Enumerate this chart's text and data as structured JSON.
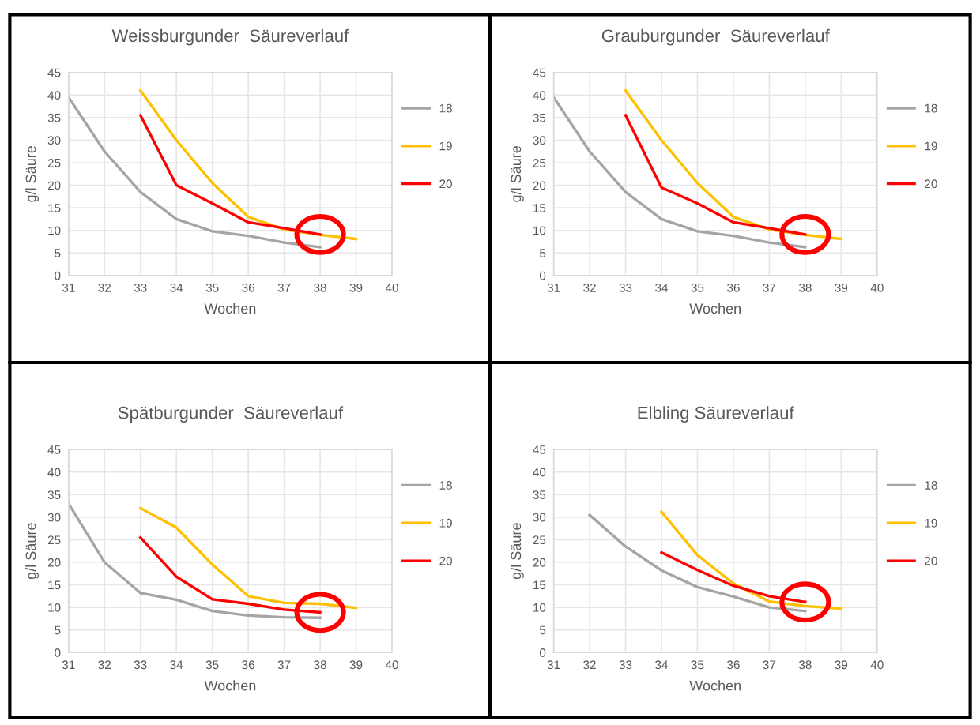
{
  "chart_data": [
    {
      "type": "line",
      "title": "Weissburgunder  Säureverlauf",
      "xlabel": "Wochen",
      "ylabel": "g/l Säure",
      "xlim": [
        31,
        40
      ],
      "xticks": [
        31,
        32,
        33,
        34,
        35,
        36,
        37,
        38,
        39,
        40
      ],
      "ylim": [
        0,
        45
      ],
      "yticks": [
        0,
        5,
        10,
        15,
        20,
        25,
        30,
        35,
        40,
        45
      ],
      "grid": true,
      "legend": "right",
      "series": [
        {
          "name": "18",
          "color": "#a5a5a5",
          "x": [
            31,
            32,
            33,
            34,
            35,
            36,
            37,
            38
          ],
          "values": [
            39.5,
            27.5,
            18.5,
            12.5,
            9.8,
            8.8,
            7.3,
            6.3
          ]
        },
        {
          "name": "19",
          "color": "#ffc000",
          "x": [
            33,
            34,
            35,
            36,
            37,
            38,
            39
          ],
          "values": [
            41,
            30,
            20.5,
            13,
            10.2,
            9,
            8.1
          ]
        },
        {
          "name": "20",
          "color": "#ff0000",
          "x": [
            33,
            34,
            35,
            36,
            37,
            38
          ],
          "values": [
            35.5,
            20,
            16,
            11.8,
            10.5,
            9.1
          ]
        }
      ]
    },
    {
      "type": "line",
      "title": "Grauburgunder  Säureverlauf",
      "xlabel": "Wochen",
      "ylabel": "g/l Säure",
      "xlim": [
        31,
        40
      ],
      "xticks": [
        31,
        32,
        33,
        34,
        35,
        36,
        37,
        38,
        39,
        40
      ],
      "ylim": [
        0,
        45
      ],
      "yticks": [
        0,
        5,
        10,
        15,
        20,
        25,
        30,
        35,
        40,
        45
      ],
      "grid": true,
      "legend": "right",
      "series": [
        {
          "name": "18",
          "color": "#a5a5a5",
          "x": [
            31,
            32,
            33,
            34,
            35,
            36,
            37,
            38
          ],
          "values": [
            39.5,
            27.5,
            18.5,
            12.5,
            9.8,
            8.8,
            7.3,
            6.3
          ]
        },
        {
          "name": "19",
          "color": "#ffc000",
          "x": [
            33,
            34,
            35,
            36,
            37,
            38,
            39
          ],
          "values": [
            41,
            30,
            20.5,
            13,
            10.2,
            9,
            8.1
          ]
        },
        {
          "name": "20",
          "color": "#ff0000",
          "x": [
            33,
            34,
            35,
            36,
            37,
            38
          ],
          "values": [
            35.5,
            19.5,
            16,
            11.8,
            10.5,
            9.1
          ]
        }
      ]
    },
    {
      "type": "line",
      "title": "Spätburgunder  Säureverlauf",
      "xlabel": "Wochen",
      "ylabel": "g/l Säure",
      "xlim": [
        31,
        40
      ],
      "xticks": [
        31,
        32,
        33,
        34,
        35,
        36,
        37,
        38,
        39,
        40
      ],
      "ylim": [
        0,
        45
      ],
      "yticks": [
        0,
        5,
        10,
        15,
        20,
        25,
        30,
        35,
        40,
        45
      ],
      "grid": true,
      "legend": "right",
      "series": [
        {
          "name": "18",
          "color": "#a5a5a5",
          "x": [
            31,
            32,
            33,
            34,
            35,
            36,
            37,
            38
          ],
          "values": [
            33,
            20,
            13.2,
            11.7,
            9.2,
            8.2,
            7.8,
            7.7
          ]
        },
        {
          "name": "19",
          "color": "#ffc000",
          "x": [
            33,
            34,
            35,
            36,
            37,
            38,
            39
          ],
          "values": [
            32,
            27.7,
            19.5,
            12.5,
            11,
            10.8,
            9.9
          ]
        },
        {
          "name": "20",
          "color": "#ff0000",
          "x": [
            33,
            34,
            35,
            36,
            37,
            38
          ],
          "values": [
            25.5,
            16.8,
            11.8,
            10.8,
            9.5,
            8.9
          ]
        }
      ]
    },
    {
      "type": "line",
      "title": "Elbling Säureverlauf",
      "xlabel": "Wochen",
      "ylabel": "g/l Säure",
      "xlim": [
        31,
        40
      ],
      "xticks": [
        31,
        32,
        33,
        34,
        35,
        36,
        37,
        38,
        39,
        40
      ],
      "ylim": [
        0,
        45
      ],
      "yticks": [
        0,
        5,
        10,
        15,
        20,
        25,
        30,
        35,
        40,
        45
      ],
      "grid": true,
      "legend": "right",
      "series": [
        {
          "name": "18",
          "color": "#a5a5a5",
          "x": [
            32,
            33,
            34,
            35,
            36,
            37,
            38
          ],
          "values": [
            30.5,
            23.5,
            18.2,
            14.5,
            12.4,
            10,
            9.2
          ]
        },
        {
          "name": "19",
          "color": "#ffc000",
          "x": [
            34,
            35,
            36,
            37,
            38,
            39
          ],
          "values": [
            31.2,
            21.6,
            15.3,
            11.3,
            10.3,
            9.7
          ]
        },
        {
          "name": "20",
          "color": "#ff0000",
          "x": [
            34,
            35,
            36,
            37,
            38
          ],
          "values": [
            22.2,
            18.3,
            14.8,
            12.5,
            11.2
          ]
        }
      ]
    }
  ]
}
